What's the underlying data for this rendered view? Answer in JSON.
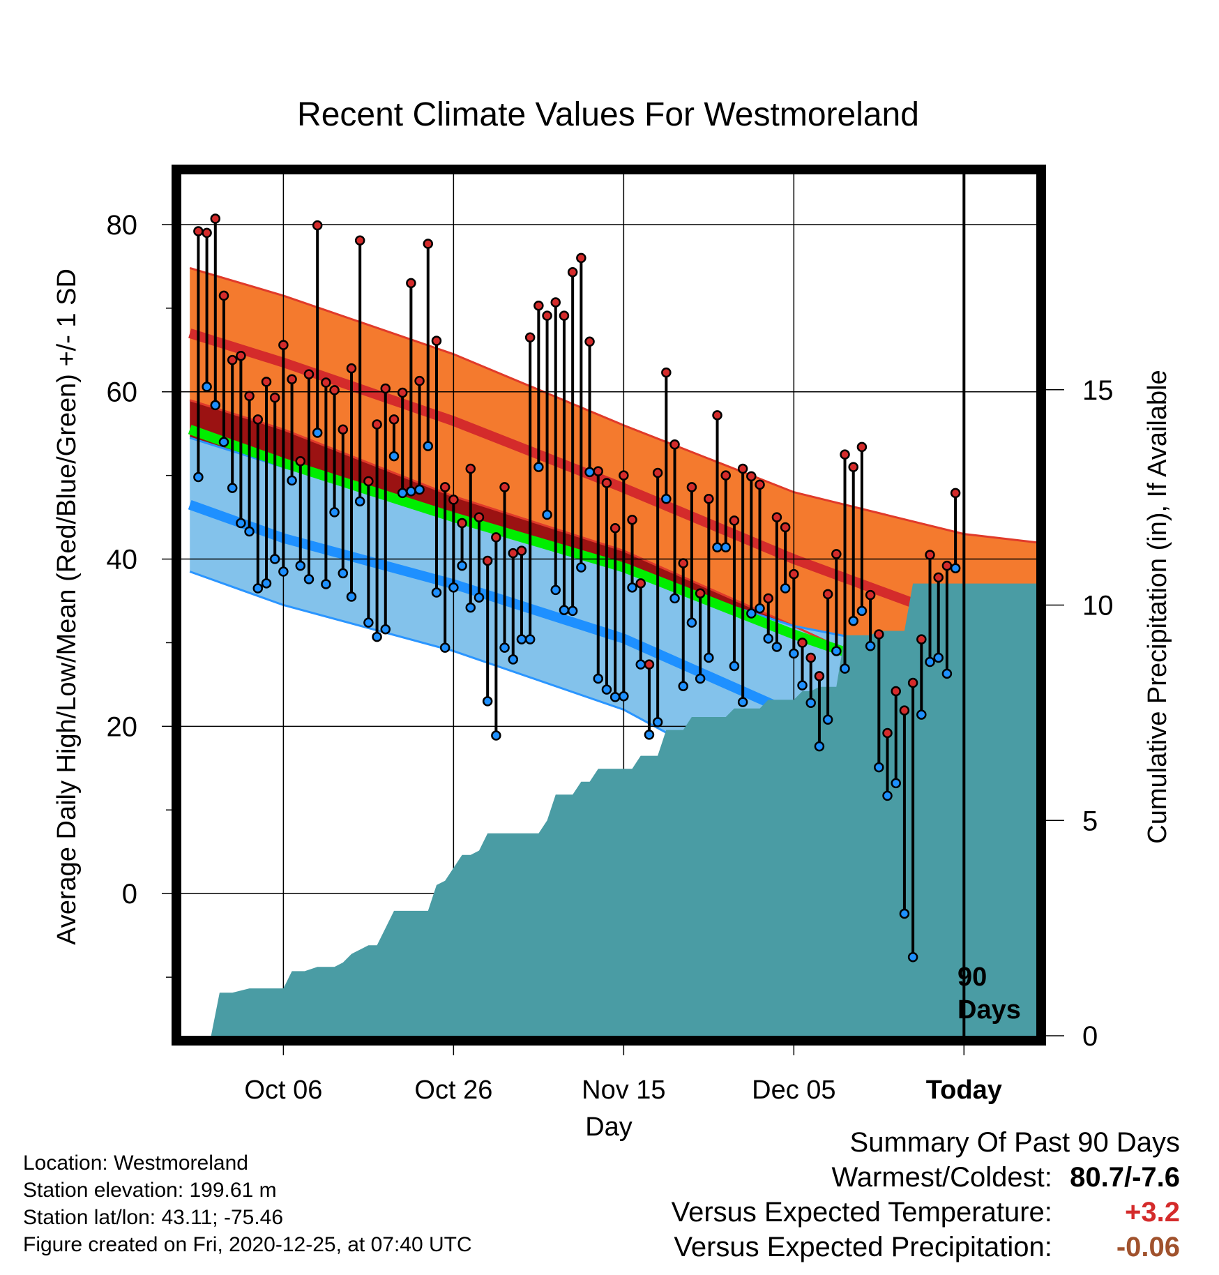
{
  "chart_data": {
    "type": "line",
    "title": "Recent Climate Values For Westmoreland",
    "xlabel": "Day",
    "ylabel": "Average Daily High/Low/Mean (Red/Blue/Green) +/- 1 SD",
    "y2label": "Cumulative Precipitation (in), If Available",
    "x_ticks": [
      "Oct 06",
      "Oct 26",
      "Nov 15",
      "Dec 05",
      "Today"
    ],
    "x_range_days": [
      -92,
      8.5
    ],
    "x_tick_days": [
      -80,
      -60,
      -40,
      -20,
      0
    ],
    "ylim": [
      -17,
      86
    ],
    "y_ticks": [
      0,
      20,
      40,
      60,
      80
    ],
    "y2lim": [
      0,
      20
    ],
    "y2_ticks": [
      0,
      5,
      10,
      15
    ],
    "today_marker": {
      "day": 0,
      "label_line1": "90",
      "label_line2": "Days"
    },
    "grid": true,
    "normals": {
      "days": [
        -91,
        -80,
        -60,
        -40,
        -20,
        0,
        8.5
      ],
      "high_mean": [
        67.0,
        63.5,
        56.5,
        48.5,
        40.0,
        32.5,
        30.5
      ],
      "high_sd_upper": [
        74.8,
        71.5,
        64.5,
        56.0,
        48.0,
        43.0,
        42.0
      ],
      "high_sd_lower": [
        59.0,
        55.5,
        47.5,
        41.0,
        32.0,
        22.5,
        19.8
      ],
      "mean_mean": [
        55.5,
        51.5,
        45.0,
        39.0,
        31.0,
        24.0,
        21.5
      ],
      "low_mean": [
        46.5,
        42.5,
        37.0,
        30.5,
        21.5,
        15.5,
        14.0
      ],
      "low_sd_upper": [
        54.5,
        51.0,
        45.0,
        38.5,
        32.0,
        28.0,
        26.5
      ],
      "low_sd_lower": [
        38.5,
        34.5,
        29.0,
        22.0,
        11.0,
        4.5,
        4.5
      ]
    },
    "daily_days": [
      -90,
      -89,
      -88,
      -87,
      -86,
      -85,
      -84,
      -83,
      -82,
      -81,
      -80,
      -79,
      -78,
      -77,
      -76,
      -75,
      -74,
      -73,
      -72,
      -71,
      -70,
      -69,
      -68,
      -67,
      -66,
      -65,
      -64,
      -63,
      -62,
      -61,
      -60,
      -59,
      -58,
      -57,
      -56,
      -55,
      -54,
      -53,
      -52,
      -51,
      -50,
      -49,
      -48,
      -47,
      -46,
      -45,
      -44,
      -43,
      -42,
      -41,
      -40,
      -39,
      -38,
      -37,
      -36,
      -35,
      -34,
      -33,
      -32,
      -31,
      -30,
      -29,
      -28,
      -27,
      -26,
      -25,
      -24,
      -23,
      -22,
      -21,
      -20,
      -19,
      -18,
      -17,
      -16,
      -15,
      -14,
      -13,
      -12,
      -11,
      -10,
      -9,
      -8,
      -7,
      -6,
      -5,
      -4,
      -3,
      -2,
      -1
    ],
    "daily_high": [
      79.2,
      79.0,
      80.7,
      71.5,
      63.8,
      64.3,
      59.5,
      56.7,
      61.2,
      59.3,
      65.6,
      61.5,
      51.7,
      62.1,
      79.9,
      61.1,
      60.2,
      55.5,
      62.8,
      78.1,
      49.3,
      56.1,
      60.4,
      56.7,
      59.9,
      73.0,
      61.3,
      77.7,
      66.1,
      48.6,
      47.1,
      44.3,
      50.8,
      45.0,
      39.8,
      42.6,
      48.6,
      40.7,
      41.0,
      66.5,
      70.3,
      69.1,
      70.7,
      69.1,
      74.3,
      76.0,
      66.0,
      50.5,
      49.1,
      43.7,
      50.0,
      44.7,
      37.1,
      27.4,
      50.3,
      62.3,
      53.7,
      39.5,
      48.6,
      35.9,
      47.2,
      57.2,
      50.0,
      44.6,
      50.8,
      49.9,
      48.9,
      35.3,
      45.0,
      43.8,
      38.2,
      30.0,
      28.2,
      26.0,
      35.8,
      40.6,
      52.5,
      51.0,
      53.4,
      35.7,
      31.0,
      19.2,
      24.2,
      21.9,
      25.2,
      30.4,
      40.5,
      37.8,
      39.2,
      47.9
    ],
    "daily_low": [
      49.8,
      60.6,
      58.4,
      54.0,
      48.5,
      44.3,
      43.3,
      36.5,
      37.1,
      40.0,
      38.5,
      49.4,
      39.2,
      37.6,
      55.1,
      37.0,
      45.6,
      38.3,
      35.5,
      46.9,
      32.4,
      30.7,
      31.6,
      52.3,
      47.9,
      48.1,
      48.3,
      53.5,
      36.0,
      29.4,
      36.6,
      39.2,
      34.2,
      35.4,
      23.0,
      18.9,
      29.4,
      28.0,
      30.4,
      30.4,
      51.0,
      45.3,
      36.3,
      33.9,
      33.8,
      39.0,
      50.4,
      25.7,
      24.4,
      23.5,
      23.6,
      36.6,
      27.4,
      19.0,
      20.5,
      47.2,
      35.3,
      24.8,
      32.4,
      25.7,
      28.2,
      41.4,
      41.4,
      27.2,
      22.9,
      33.5,
      34.1,
      30.5,
      29.5,
      36.5,
      28.7,
      24.9,
      22.8,
      17.6,
      20.8,
      29.0,
      26.9,
      32.6,
      33.8,
      29.6,
      15.1,
      11.7,
      13.2,
      -2.4,
      -7.6,
      21.4,
      27.7,
      28.2,
      26.3,
      38.9
    ],
    "cumulative_precipitation": {
      "days": [
        -90,
        -88.5,
        -87.5,
        -86,
        -84,
        -83,
        -81,
        -80,
        -79,
        -78,
        -77.5,
        -76,
        -74,
        -73,
        -72,
        -71,
        -70,
        -69,
        -68,
        -67,
        -66,
        -65,
        -64,
        -63,
        -62,
        -61,
        -60,
        -59,
        -58,
        -57,
        -56,
        -55,
        -54,
        -53,
        -52,
        -51,
        -50,
        -49,
        -48,
        -47,
        -46,
        -45,
        -44,
        -43,
        -42,
        -41,
        -40,
        -39,
        -38,
        -37,
        -36,
        -35,
        -34,
        -33,
        -32,
        -31,
        -30,
        -29,
        -28,
        -27,
        -26,
        -25,
        -24,
        -23,
        -22,
        -21,
        -20,
        -19,
        -18,
        -17,
        -16,
        -15,
        -14,
        -13,
        -12,
        -11,
        -10,
        -9,
        -8,
        -7,
        -6,
        -5,
        -4,
        -3,
        -2,
        -1,
        -0.5,
        8.5
      ],
      "values": [
        0,
        0,
        1.0,
        1.0,
        1.1,
        1.1,
        1.1,
        1.1,
        1.5,
        1.5,
        1.5,
        1.6,
        1.6,
        1.7,
        1.9,
        2.0,
        2.1,
        2.1,
        2.5,
        2.9,
        2.9,
        2.9,
        2.9,
        2.9,
        3.5,
        3.6,
        3.9,
        4.2,
        4.2,
        4.3,
        4.7,
        4.7,
        4.7,
        4.7,
        4.7,
        4.7,
        4.7,
        5.0,
        5.6,
        5.6,
        5.6,
        5.9,
        5.9,
        6.2,
        6.2,
        6.2,
        6.2,
        6.2,
        6.5,
        6.5,
        6.5,
        7.1,
        7.1,
        7.1,
        7.4,
        7.4,
        7.4,
        7.4,
        7.4,
        7.6,
        7.6,
        7.6,
        7.6,
        7.8,
        7.8,
        7.8,
        7.8,
        8.0,
        8.0,
        8.1,
        8.1,
        8.1,
        9.3,
        9.3,
        9.3,
        9.3,
        9.4,
        9.4,
        9.4,
        9.4,
        10.5,
        10.5,
        10.5,
        10.5,
        10.5,
        10.5,
        10.5,
        10.5
      ]
    }
  },
  "colors": {
    "high_band": "#f47a2e",
    "high_band_edge": "#e03a2a",
    "high_mean": "#d42b2b",
    "warm_overlap": "#9b1212",
    "low_band": "#83c2eb",
    "low_band_edge": "#2a95ff",
    "low_mean": "#1e90ff",
    "mean_line": "#00ee00",
    "precip_fill": "#4a9ca4",
    "high_dot": "#d42b2b",
    "low_dot": "#1e90ff",
    "positive_anomaly": "#d42b2b",
    "negative_precip_anomaly": "#a0522d"
  },
  "footer": {
    "location": "Location: Westmoreland",
    "elevation": "Station elevation: 199.61 m",
    "latlon": "Station lat/lon: 43.11; -75.46",
    "created": "Figure created on Fri, 2020-12-25, at 07:40 UTC"
  },
  "summary": {
    "heading": "Summary Of Past 90 Days",
    "warmest_coldest_label": "Warmest/Coldest:",
    "warmest_coldest_value": "80.7/-7.6",
    "temp_label": "Versus Expected Temperature:",
    "temp_value": "+3.2",
    "precip_label": "Versus Expected Precipitation:",
    "precip_value": "-0.06"
  }
}
